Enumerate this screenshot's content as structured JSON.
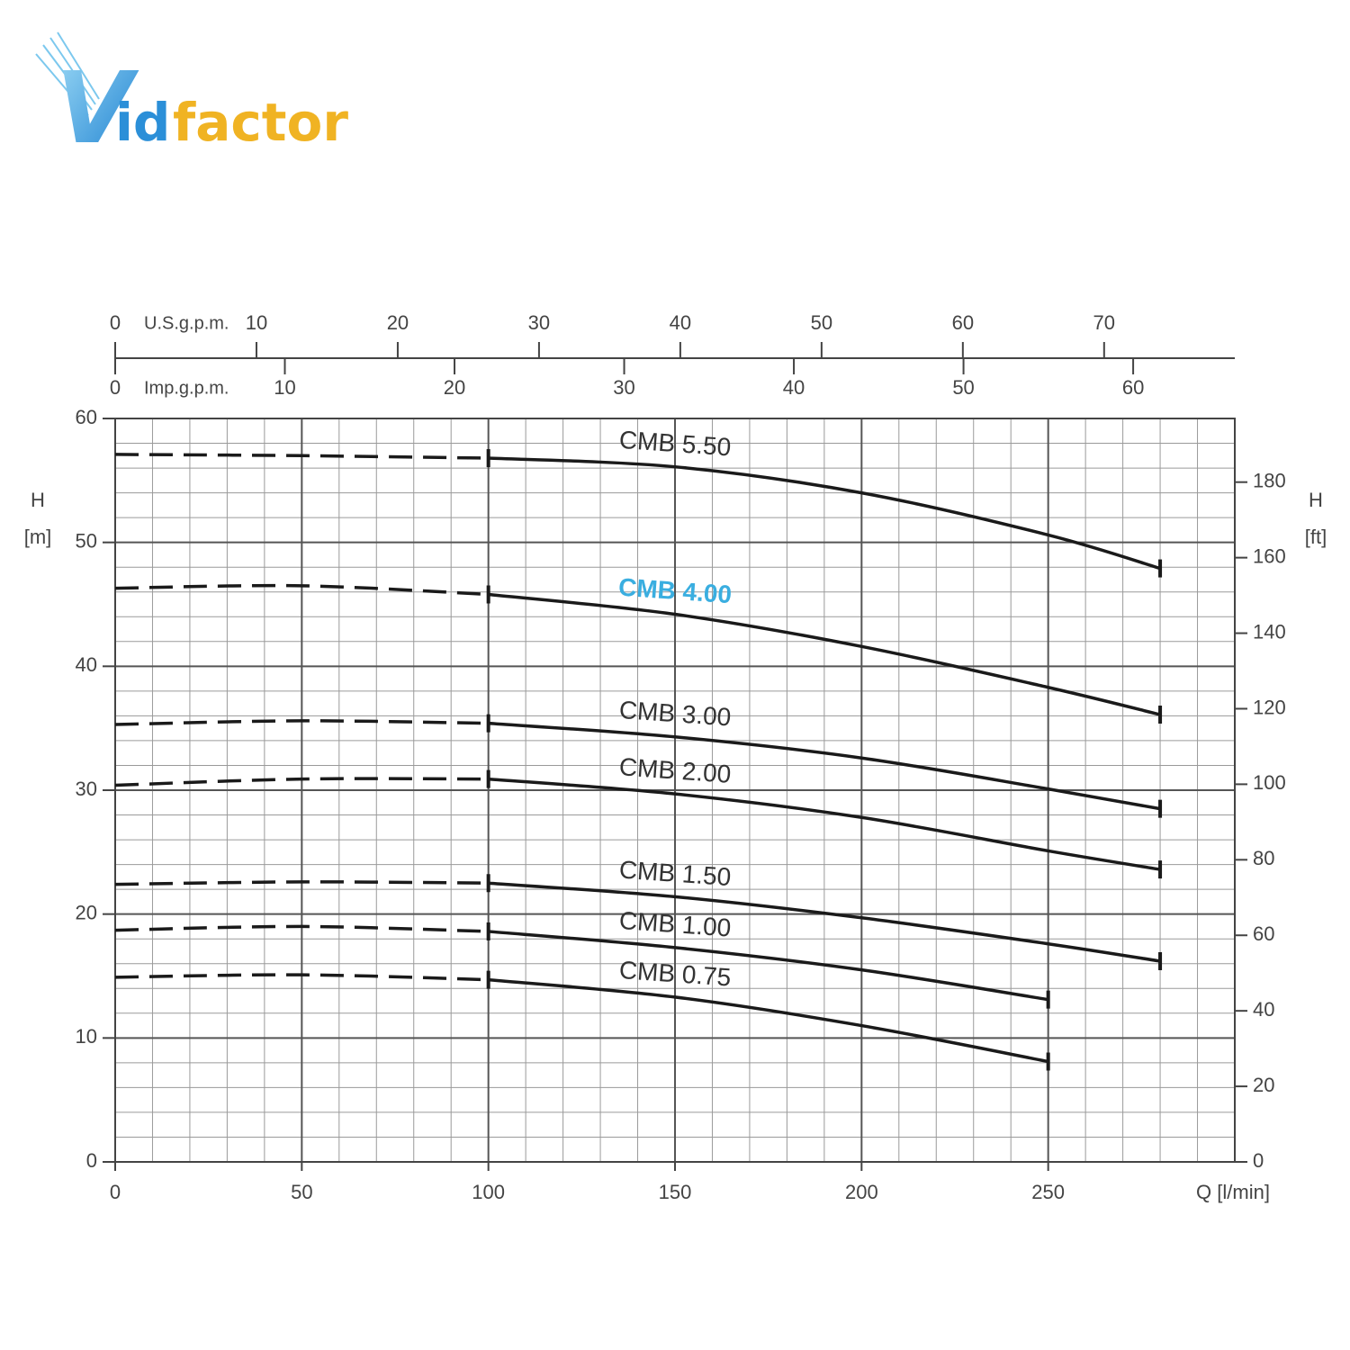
{
  "logo": [
    "V",
    "id",
    "factor"
  ],
  "chart_data": {
    "type": "line",
    "x": [
      0,
      50,
      100,
      150,
      200,
      250,
      280
    ],
    "xlim": [
      0,
      300
    ],
    "xticks": [
      0,
      50,
      100,
      150,
      200,
      250
    ],
    "xlabel": "Q [l/min]",
    "minor_xticks": [
      0,
      10,
      20,
      30,
      40,
      50,
      60,
      70,
      80,
      90,
      100,
      110,
      120,
      130,
      140,
      150,
      160,
      170,
      180,
      190,
      200,
      210,
      220,
      230,
      240,
      250,
      260,
      270,
      280,
      290,
      300
    ],
    "ylim": [
      0,
      60
    ],
    "yticks": [
      0,
      10,
      20,
      30,
      40,
      50,
      60
    ],
    "minor_yticks": [
      0,
      2,
      4,
      6,
      8,
      10,
      12,
      14,
      16,
      18,
      20,
      22,
      24,
      26,
      28,
      30,
      32,
      34,
      36,
      38,
      40,
      42,
      44,
      46,
      48,
      50,
      52,
      54,
      56,
      58,
      60
    ],
    "ylabel": [
      "H",
      "[m]"
    ],
    "y2lim": [
      0,
      196.85
    ],
    "y2ticks": [
      0,
      20,
      40,
      60,
      80,
      100,
      120,
      140,
      160,
      180
    ],
    "y2label": [
      "H",
      "[ft]"
    ],
    "top_axes": [
      {
        "label": "U.S.g.p.m.",
        "xlim": [
          0,
          79.25
        ],
        "xticks": [
          0,
          10,
          20,
          30,
          40,
          50,
          60,
          70
        ],
        "side": "above"
      },
      {
        "label": "Imp.g.p.m.",
        "xlim": [
          0,
          65.99
        ],
        "xticks": [
          0,
          10,
          20,
          30,
          40,
          50,
          60
        ],
        "side": "below"
      }
    ],
    "grid": true,
    "dashed_until": 100,
    "series": [
      {
        "name": "CMB 5.50",
        "color": "#1a1a1a",
        "values": [
          57.1,
          57.0,
          56.8,
          56.1,
          54.0,
          50.6,
          47.9
        ]
      },
      {
        "name": "CMB 4.00",
        "color": "#1a1a1a",
        "label_color": "#3aaee0",
        "values": [
          46.3,
          46.5,
          45.8,
          44.2,
          41.6,
          38.3,
          36.1
        ]
      },
      {
        "name": "CMB 3.00",
        "color": "#1a1a1a",
        "values": [
          35.3,
          35.6,
          35.4,
          34.3,
          32.6,
          30.1,
          28.5
        ]
      },
      {
        "name": "CMB 2.00",
        "color": "#1a1a1a",
        "values": [
          30.4,
          30.9,
          30.9,
          29.7,
          27.8,
          25.1,
          23.6
        ]
      },
      {
        "name": "CMB 1.50",
        "color": "#1a1a1a",
        "values": [
          22.4,
          22.6,
          22.5,
          21.4,
          19.7,
          17.6,
          16.2
        ]
      },
      {
        "name": "CMB 1.00",
        "color": "#1a1a1a",
        "values": [
          18.7,
          19.0,
          18.6,
          17.3,
          15.5,
          13.1,
          null
        ]
      },
      {
        "name": "CMB 0.75",
        "color": "#1a1a1a",
        "values": [
          14.9,
          15.1,
          14.7,
          13.3,
          11.0,
          8.1,
          null
        ]
      }
    ]
  }
}
